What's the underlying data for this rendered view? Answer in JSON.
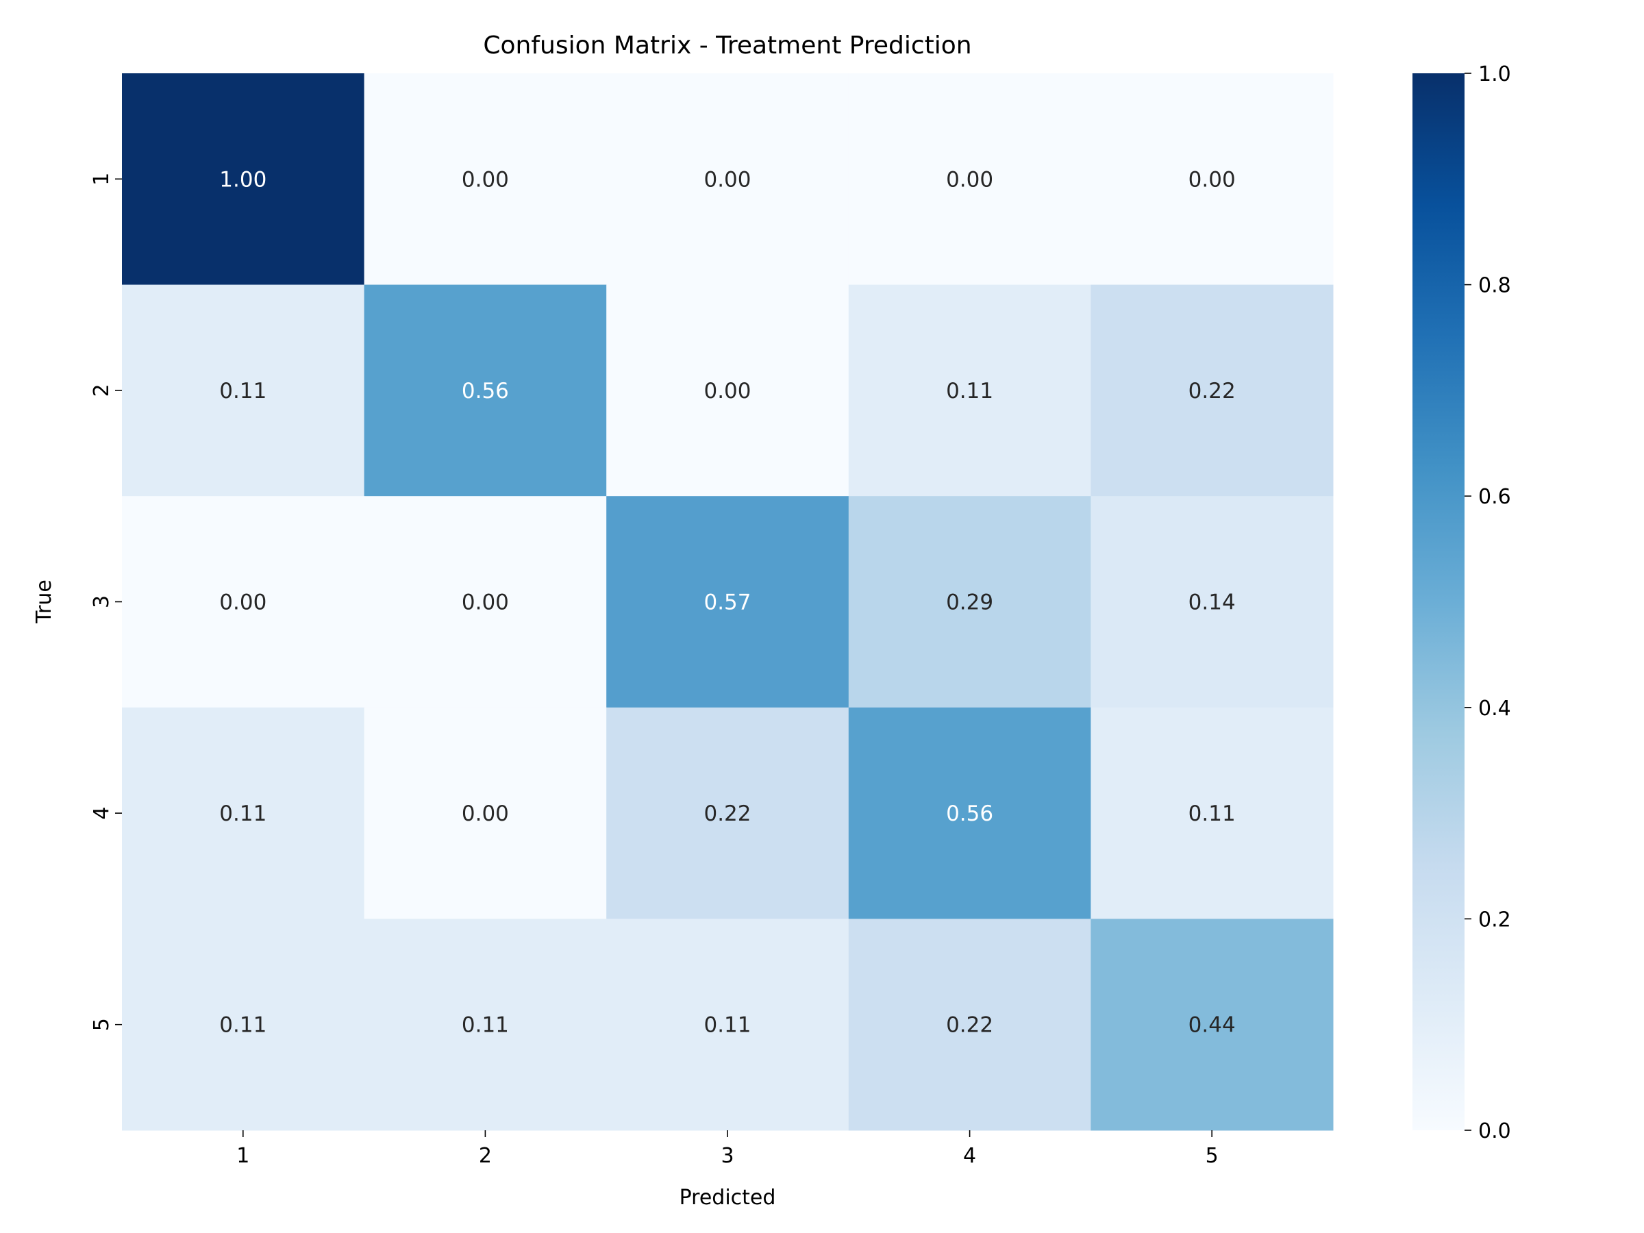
{
  "chart_data": {
    "type": "heatmap",
    "title": "Confusion Matrix - Treatment Prediction",
    "xlabel": "Predicted",
    "ylabel": "True",
    "x_categories": [
      "1",
      "2",
      "3",
      "4",
      "5"
    ],
    "y_categories": [
      "1",
      "2",
      "3",
      "4",
      "5"
    ],
    "values": [
      [
        1.0,
        0.0,
        0.0,
        0.0,
        0.0
      ],
      [
        0.11,
        0.56,
        0.0,
        0.11,
        0.22
      ],
      [
        0.0,
        0.0,
        0.57,
        0.29,
        0.14
      ],
      [
        0.11,
        0.0,
        0.22,
        0.56,
        0.11
      ],
      [
        0.11,
        0.11,
        0.11,
        0.22,
        0.44
      ]
    ],
    "value_format": "0.00",
    "colormap": "Blues",
    "colormap_stops": [
      "#f7fbff",
      "#deebf7",
      "#c6dbef",
      "#9ecae1",
      "#6baed6",
      "#4292c6",
      "#2171b5",
      "#08519c",
      "#08306b"
    ],
    "colorbar": {
      "range": [
        0.0,
        1.0
      ],
      "ticks": [
        "0.0",
        "0.2",
        "0.4",
        "0.6",
        "0.8",
        "1.0"
      ]
    },
    "annotation_colors": {
      "dark": "#262626",
      "light": "#ffffff"
    }
  }
}
